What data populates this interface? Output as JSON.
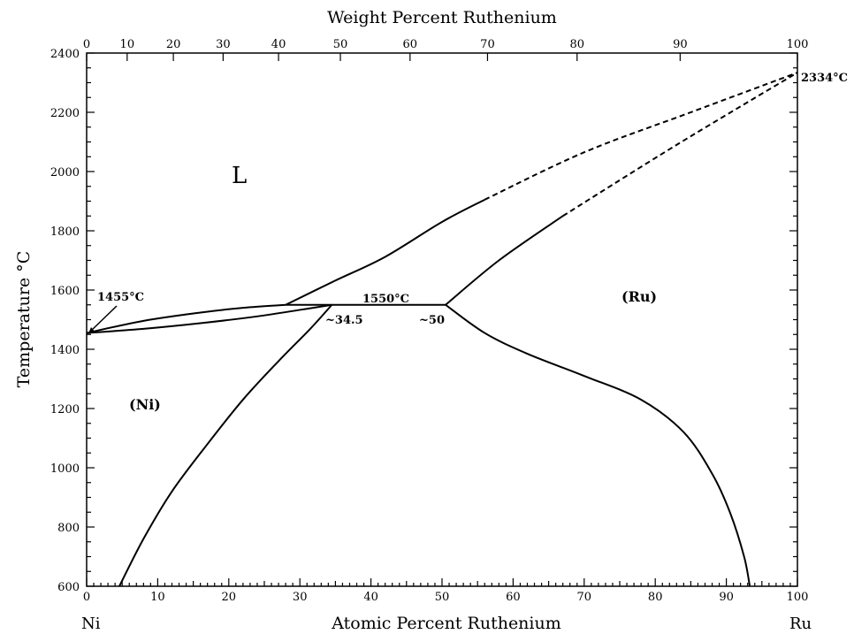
{
  "chart_data": {
    "type": "line",
    "title": "",
    "xlabel": "Atomic Percent Ruthenium",
    "x2label": "Weight Percent Ruthenium",
    "ylabel": "Temperature °C",
    "xlim": [
      0,
      100
    ],
    "ylim": [
      600,
      2400
    ],
    "x_ticks": [
      0,
      10,
      20,
      30,
      40,
      50,
      60,
      70,
      80,
      90,
      100
    ],
    "x2_ticks": [
      0,
      10,
      20,
      30,
      40,
      50,
      60,
      70,
      80,
      90,
      100
    ],
    "x2_tick_positions_at": [
      0,
      5.7,
      12.2,
      19.2,
      27.0,
      35.7,
      45.5,
      56.4,
      69.0,
      83.5,
      100
    ],
    "y_ticks": [
      600,
      800,
      1000,
      1200,
      1400,
      1600,
      1800,
      2000,
      2200,
      2400
    ],
    "left_end_label": "Ni",
    "right_end_label": "Ru",
    "regions": {
      "liquid": "L",
      "ni": "(Ni)",
      "ru": "(Ru)"
    },
    "annotations": {
      "ni_melting": "1455°C",
      "peritectic": "1550°C",
      "ru_melting": "2334°C",
      "ni_solvus_comp": "~34.5",
      "ru_solvus_comp": "~50"
    },
    "series": [
      {
        "style": "solid",
        "x": [
          0,
          8,
          16,
          22,
          28
        ],
        "y": [
          1455,
          1496,
          1524,
          1540,
          1550
        ]
      },
      {
        "style": "solid",
        "x": [
          0,
          8,
          16,
          24,
          30,
          34.5
        ],
        "y": [
          1455,
          1469,
          1488,
          1511,
          1533,
          1550
        ]
      },
      {
        "style": "solid",
        "x": [
          28,
          34.5,
          50.5
        ],
        "y": [
          1550,
          1550,
          1550
        ]
      },
      {
        "style": "solid",
        "x": [
          28,
          35,
          42,
          50,
          56
        ],
        "y": [
          1550,
          1632,
          1712,
          1830,
          1905
        ]
      },
      {
        "style": "dashed",
        "x": [
          56,
          70,
          85,
          100
        ],
        "y": [
          1905,
          2065,
          2200,
          2334
        ]
      },
      {
        "style": "solid",
        "x": [
          50.5,
          58,
          67
        ],
        "y": [
          1550,
          1700,
          1850
        ]
      },
      {
        "style": "dashed",
        "x": [
          67,
          83,
          100
        ],
        "y": [
          1850,
          2090,
          2334
        ]
      },
      {
        "style": "solid",
        "x": [
          4.6,
          8,
          12,
          17,
          22,
          27,
          31.5,
          34.5
        ],
        "y": [
          600,
          760,
          920,
          1080,
          1230,
          1360,
          1470,
          1550
        ]
      },
      {
        "style": "solid",
        "x": [
          50.5,
          56,
          62,
          70,
          78,
          84,
          88,
          90.5,
          92.5,
          93.3
        ],
        "y": [
          1550,
          1455,
          1385,
          1310,
          1230,
          1120,
          980,
          850,
          700,
          600
        ]
      }
    ]
  }
}
